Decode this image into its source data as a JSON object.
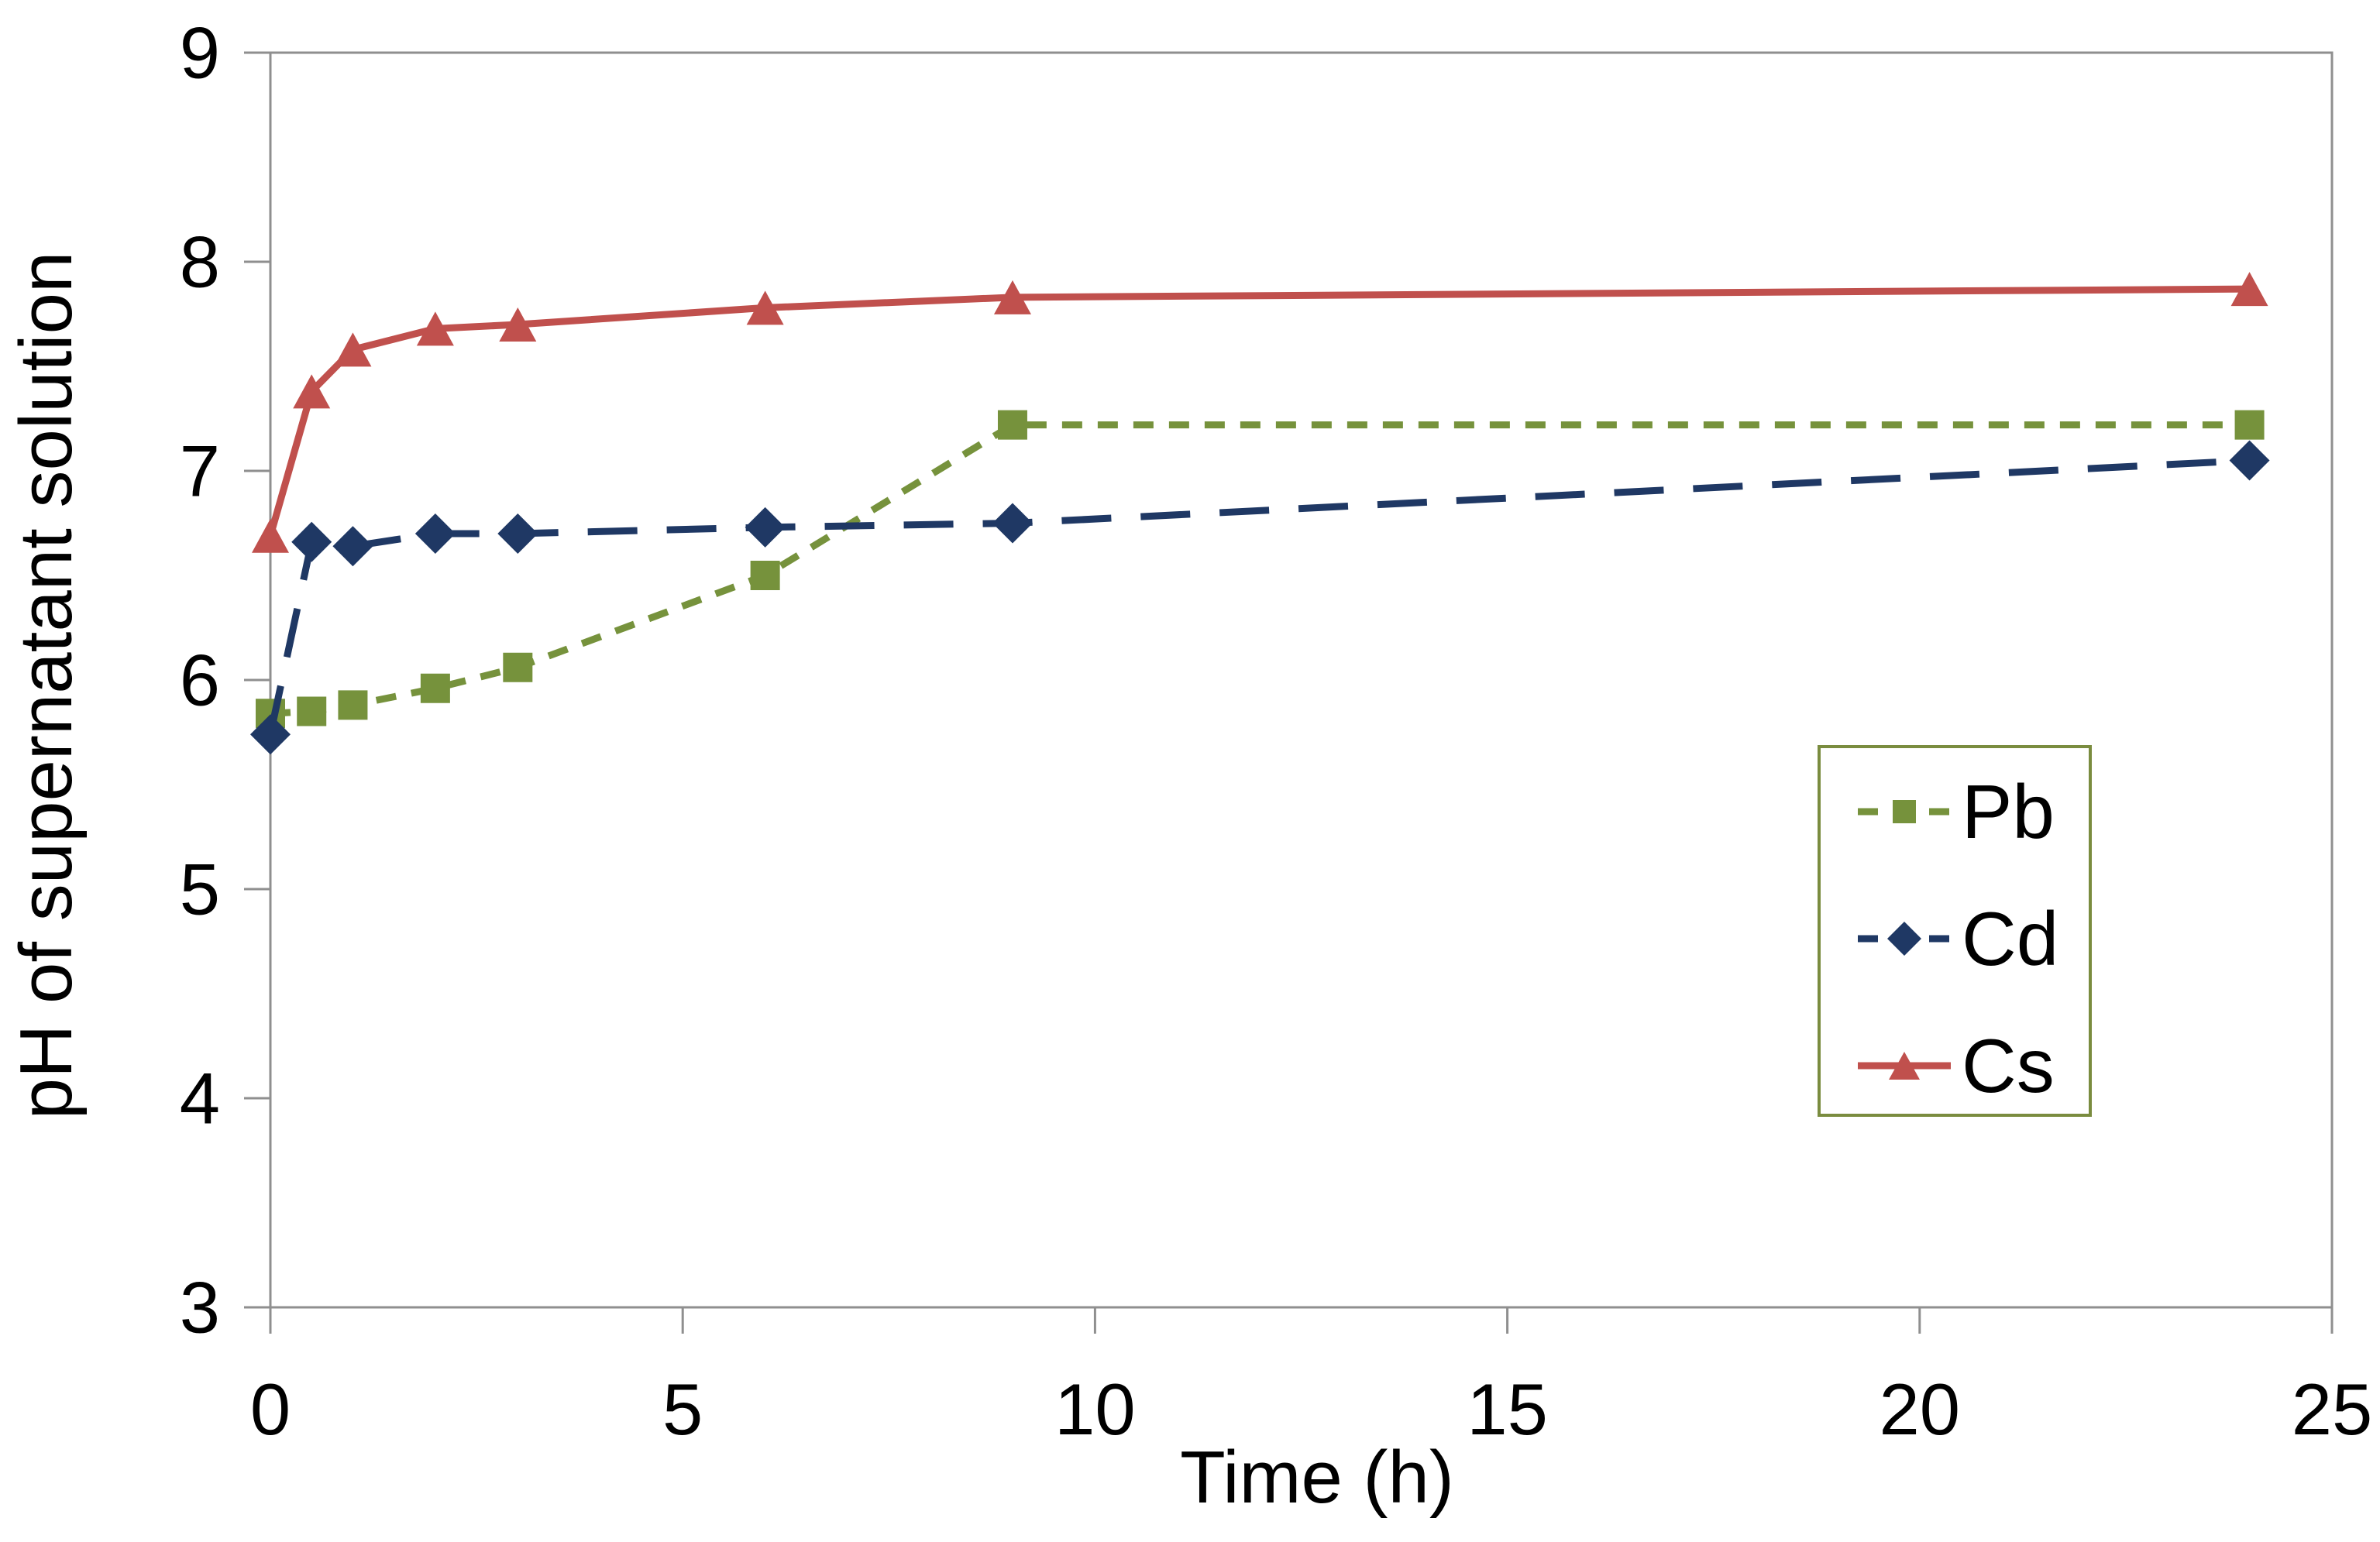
{
  "figure": {
    "background": "#FFFFFF",
    "axis_color": "#8F8F8F",
    "text_color": "#000000"
  },
  "chart_data": {
    "type": "line",
    "title": "",
    "xlabel": "Time (h)",
    "ylabel": "pH of supernatant solution",
    "xlim": [
      0,
      25
    ],
    "ylim": [
      3,
      9
    ],
    "xticks": [
      0,
      5,
      10,
      15,
      20,
      25
    ],
    "yticks": [
      3,
      4,
      5,
      6,
      7,
      8,
      9
    ],
    "grid": false,
    "legend": {
      "position": "middle-right",
      "border_color": "#7A8C3F",
      "fill": "#FFFFFF",
      "entries": [
        "Pb",
        "Cd",
        "Cs"
      ]
    },
    "x": [
      0,
      0.5,
      1,
      2,
      3,
      6,
      9,
      24
    ],
    "series": [
      {
        "name": "Pb",
        "color": "#76923C",
        "marker": "square",
        "line_style": "short-dash",
        "values": [
          5.84,
          5.85,
          5.88,
          5.96,
          6.06,
          6.5,
          7.22,
          7.22
        ]
      },
      {
        "name": "Cd",
        "color": "#1F3864",
        "marker": "diamond",
        "line_style": "long-dash",
        "values": [
          5.74,
          6.66,
          6.64,
          6.7,
          6.7,
          6.73,
          6.75,
          7.05
        ]
      },
      {
        "name": "Cs",
        "color": "#C0504D",
        "marker": "triangle",
        "line_style": "solid",
        "values": [
          6.69,
          7.38,
          7.58,
          7.68,
          7.7,
          7.78,
          7.83,
          7.87
        ]
      }
    ]
  }
}
